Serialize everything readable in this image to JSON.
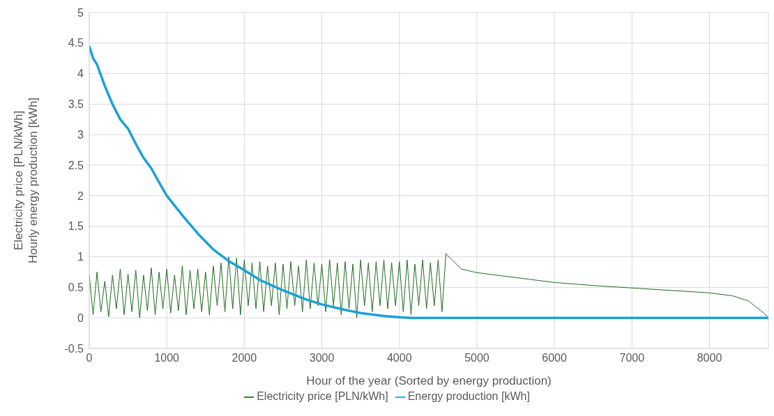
{
  "chart_data": {
    "type": "line",
    "xlabel": "Hour of the year (Sorted by energy production)",
    "ylabel": "Electricity price [PLN/kWh]\nHourly energy production [kWh]",
    "xlim": [
      0,
      8760
    ],
    "xticks": [
      0,
      1000,
      2000,
      3000,
      4000,
      5000,
      6000,
      7000,
      8000
    ],
    "ylim": [
      -0.5,
      5
    ],
    "yticks": [
      -0.5,
      0,
      0.5,
      1,
      1.5,
      2,
      2.5,
      3,
      3.5,
      4,
      4.5,
      5
    ],
    "grid": true,
    "legend": "bottom",
    "marker": "none",
    "series": [
      {
        "name": "Electricity price [PLN/kWh]",
        "color": "#1e6b1e",
        "x": [
          0,
          50,
          100,
          150,
          200,
          250,
          300,
          350,
          400,
          450,
          500,
          550,
          600,
          650,
          700,
          750,
          800,
          850,
          900,
          950,
          1000,
          1050,
          1100,
          1150,
          1200,
          1250,
          1300,
          1350,
          1400,
          1450,
          1500,
          1550,
          1600,
          1650,
          1700,
          1750,
          1800,
          1850,
          1900,
          1950,
          2000,
          2050,
          2100,
          2150,
          2200,
          2250,
          2300,
          2350,
          2400,
          2450,
          2500,
          2550,
          2600,
          2650,
          2700,
          2750,
          2800,
          2850,
          2900,
          2950,
          3000,
          3050,
          3100,
          3150,
          3200,
          3250,
          3300,
          3350,
          3400,
          3450,
          3500,
          3550,
          3600,
          3650,
          3700,
          3750,
          3800,
          3850,
          3900,
          3950,
          4000,
          4050,
          4100,
          4150,
          4200,
          4250,
          4300,
          4350,
          4400,
          4450,
          4500,
          4550,
          4600,
          4800,
          5000,
          5500,
          6000,
          6500,
          7000,
          7500,
          8000,
          8300,
          8500,
          8600,
          8700,
          8760
        ],
        "values": [
          0.7,
          0.05,
          0.75,
          0.1,
          0.6,
          0.02,
          0.7,
          0.15,
          0.8,
          0.05,
          0.72,
          0.1,
          0.78,
          0,
          0.7,
          0.12,
          0.82,
          0.05,
          0.75,
          0.15,
          0.8,
          0.08,
          0.7,
          0.12,
          0.85,
          0.05,
          0.78,
          0.15,
          0.8,
          0.1,
          0.75,
          0.05,
          0.85,
          0.2,
          0.9,
          0.1,
          1,
          0.15,
          0.98,
          0.05,
          0.95,
          0.2,
          0.9,
          0.15,
          0.92,
          0.1,
          0.85,
          0.2,
          0.9,
          0.05,
          0.88,
          0.15,
          0.92,
          0.2,
          0.85,
          0.1,
          0.95,
          0.15,
          0.9,
          0.2,
          0.88,
          0.1,
          0.95,
          0.2,
          0.9,
          0.05,
          0.92,
          0.15,
          0.88,
          0,
          0.95,
          0.2,
          0.9,
          0.1,
          0.92,
          0.2,
          0.95,
          0.15,
          0.9,
          0.2,
          0.92,
          0.1,
          0.95,
          0.05,
          0.88,
          0.2,
          0.95,
          0.15,
          0.9,
          0.2,
          0.95,
          0.1,
          1.05,
          0.8,
          0.74,
          0.66,
          0.58,
          0.53,
          0.49,
          0.45,
          0.41,
          0.36,
          0.28,
          0.18,
          0.08,
          0
        ]
      },
      {
        "name": "Energy production [kWh]",
        "color": "#1ba1d8",
        "x": [
          0,
          50,
          100,
          200,
          300,
          400,
          500,
          600,
          700,
          800,
          900,
          1000,
          1200,
          1400,
          1600,
          1800,
          2000,
          2200,
          2500,
          2800,
          3000,
          3300,
          3500,
          3800,
          4000,
          4150,
          5000,
          6000,
          7000,
          8000,
          8760
        ],
        "values": [
          4.45,
          4.25,
          4.15,
          3.8,
          3.5,
          3.25,
          3.1,
          2.85,
          2.62,
          2.45,
          2.22,
          2.0,
          1.68,
          1.38,
          1.12,
          0.93,
          0.78,
          0.62,
          0.45,
          0.3,
          0.22,
          0.13,
          0.08,
          0.03,
          0.01,
          0,
          0,
          0,
          0,
          0,
          0
        ]
      }
    ]
  }
}
